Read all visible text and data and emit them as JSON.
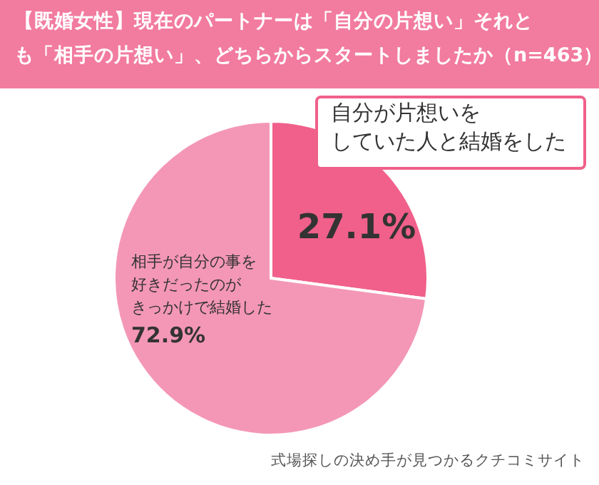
{
  "chart_data": {
    "type": "pie",
    "title": "【既婚女性】現在のパートナーは「自分の片想い」それとも「相手の片想い」、どちらからスタートしましたか（n=463）",
    "categories": [
      "自分が片想いをしていた人と結婚をした",
      "相手が自分の事を好きだったのがきっかけで結婚した"
    ],
    "values": [
      27.1,
      72.9
    ],
    "colors": [
      "#f0608a",
      "#f497b6"
    ],
    "value_labels": [
      "27.1%",
      "72.9%"
    ],
    "annotations": [
      "式場探しの決め手が見つかるクチコミサイト"
    ]
  }
}
